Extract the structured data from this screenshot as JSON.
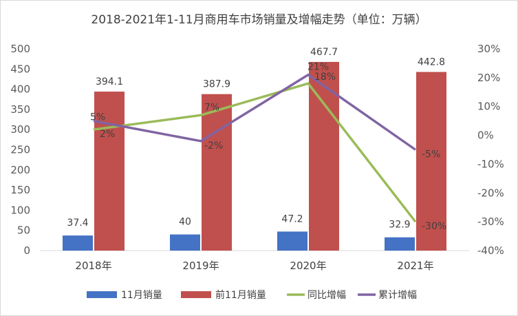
{
  "chart_data": {
    "type": "bar",
    "title": "2018-2021年1-11月商用车市场销量及增幅走势（单位：万辆）",
    "categories": [
      "2018年",
      "2019年",
      "2020年",
      "2021年"
    ],
    "series": [
      {
        "name": "11月销量",
        "kind": "bar",
        "axis": "left",
        "color": "#4472c4",
        "values": [
          37.4,
          40,
          47.2,
          32.9
        ],
        "labels": [
          "37.4",
          "40",
          "47.2",
          "32.9"
        ]
      },
      {
        "name": "前11月销量",
        "kind": "bar",
        "axis": "left",
        "color": "#c0504d",
        "values": [
          394.1,
          387.9,
          467.7,
          442.8
        ],
        "labels": [
          "394.1",
          "387.9",
          "467.7",
          "442.8"
        ]
      },
      {
        "name": "同比增幅",
        "kind": "line",
        "axis": "right",
        "color": "#9bbb59",
        "values": [
          2,
          7,
          18,
          -30
        ],
        "labels": [
          "2%",
          "7%",
          "18%",
          "-30%"
        ]
      },
      {
        "name": "累计增幅",
        "kind": "line",
        "axis": "right",
        "color": "#8064a2",
        "values": [
          5,
          -2,
          21,
          -5
        ],
        "labels": [
          "5%",
          "-2%",
          "21%",
          "-5%"
        ]
      }
    ],
    "y_left": {
      "min": 0,
      "max": 500,
      "step": 50,
      "ticks": [
        "0",
        "50",
        "100",
        "150",
        "200",
        "250",
        "300",
        "350",
        "400",
        "450",
        "500"
      ]
    },
    "y_right": {
      "min": -40,
      "max": 30,
      "step": 10,
      "ticks": [
        "-40%",
        "-30%",
        "-20%",
        "-10%",
        "0%",
        "10%",
        "20%",
        "30%"
      ]
    },
    "grid": false,
    "legend_position": "bottom"
  }
}
